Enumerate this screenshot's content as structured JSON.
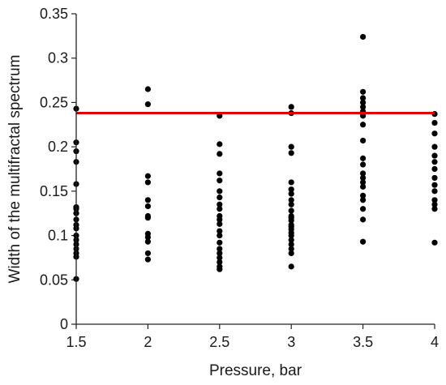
{
  "chart_data": {
    "type": "scatter",
    "xlabel": "Pressure, bar",
    "ylabel": "Width of the multifractal spectrum",
    "xlim": [
      1.5,
      4
    ],
    "ylim": [
      0,
      0.35
    ],
    "x_ticks": [
      "1.5",
      "2",
      "2.5",
      "3",
      "3.5",
      "4"
    ],
    "y_ticks": [
      "0",
      "0.05",
      "0.1",
      "0.15",
      "0.2",
      "0.25",
      "0.3",
      "0.35"
    ],
    "grid": false,
    "legend": "none",
    "reference_line": {
      "y": 0.238,
      "color": "#e00000"
    },
    "point_color": "#000000",
    "series": [
      {
        "x": [
          1.5,
          1.5,
          1.5,
          1.5,
          1.5,
          1.5,
          1.5,
          1.5,
          1.5,
          1.5,
          1.5,
          1.5,
          1.5,
          1.5,
          1.5,
          1.5,
          1.5,
          1.5,
          2,
          2,
          2,
          2,
          2,
          2,
          2,
          2,
          2,
          2,
          2,
          2,
          2,
          2.5,
          2.5,
          2.5,
          2.5,
          2.5,
          2.5,
          2.5,
          2.5,
          2.5,
          2.5,
          2.5,
          2.5,
          2.5,
          2.5,
          2.5,
          2.5,
          2.5,
          2.5,
          2.5,
          2.5,
          2.5,
          3,
          3,
          3,
          3,
          3,
          3,
          3,
          3,
          3,
          3,
          3,
          3,
          3,
          3,
          3,
          3,
          3,
          3,
          3,
          3,
          3,
          3,
          3,
          3.5,
          3.5,
          3.5,
          3.5,
          3.5,
          3.5,
          3.5,
          3.5,
          3.5,
          3.5,
          3.5,
          3.5,
          3.5,
          3.5,
          3.5,
          3.5,
          3.5,
          3.5,
          3.5,
          3.5,
          4,
          4,
          4,
          4,
          4,
          4,
          4,
          4,
          4,
          4,
          4,
          4,
          4,
          4
        ],
        "y": [
          0.243,
          0.205,
          0.195,
          0.183,
          0.158,
          0.132,
          0.125,
          0.118,
          0.108,
          0.1,
          0.095,
          0.09,
          0.085,
          0.08,
          0.076,
          0.051,
          0.13,
          0.112,
          0.265,
          0.248,
          0.167,
          0.16,
          0.14,
          0.133,
          0.122,
          0.12,
          0.102,
          0.098,
          0.093,
          0.08,
          0.073,
          0.235,
          0.203,
          0.192,
          0.17,
          0.162,
          0.15,
          0.143,
          0.13,
          0.122,
          0.113,
          0.105,
          0.1,
          0.092,
          0.085,
          0.08,
          0.075,
          0.07,
          0.065,
          0.062,
          0.135,
          0.118,
          0.245,
          0.238,
          0.2,
          0.193,
          0.16,
          0.152,
          0.147,
          0.14,
          0.135,
          0.128,
          0.122,
          0.117,
          0.112,
          0.107,
          0.103,
          0.1,
          0.095,
          0.09,
          0.085,
          0.08,
          0.12,
          0.11,
          0.065,
          0.324,
          0.262,
          0.255,
          0.25,
          0.245,
          0.24,
          0.235,
          0.225,
          0.207,
          0.187,
          0.18,
          0.17,
          0.165,
          0.16,
          0.155,
          0.145,
          0.14,
          0.13,
          0.118,
          0.093,
          0.237,
          0.227,
          0.215,
          0.2,
          0.19,
          0.183,
          0.175,
          0.165,
          0.157,
          0.15,
          0.14,
          0.135,
          0.13,
          0.092
        ]
      }
    ]
  }
}
